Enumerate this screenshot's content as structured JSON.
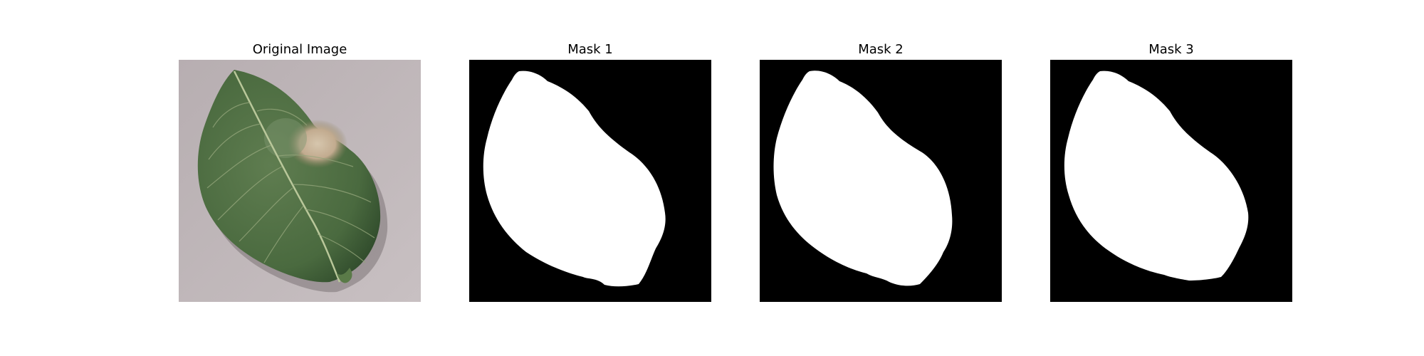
{
  "figure": {
    "panels": [
      {
        "title": "Original Image",
        "kind": "photo"
      },
      {
        "title": "Mask 1",
        "kind": "mask"
      },
      {
        "title": "Mask 2",
        "kind": "mask"
      },
      {
        "title": "Mask 3",
        "kind": "mask"
      }
    ]
  },
  "colors": {
    "background": "#ffffff",
    "mask_background": "#000000",
    "mask_foreground": "#ffffff",
    "photo_surface": "#b9b0b3",
    "leaf_green": "#4f6e43",
    "leaf_dark": "#314b2c",
    "lesion": "#c9b69d",
    "vein": "#a9b88a"
  }
}
